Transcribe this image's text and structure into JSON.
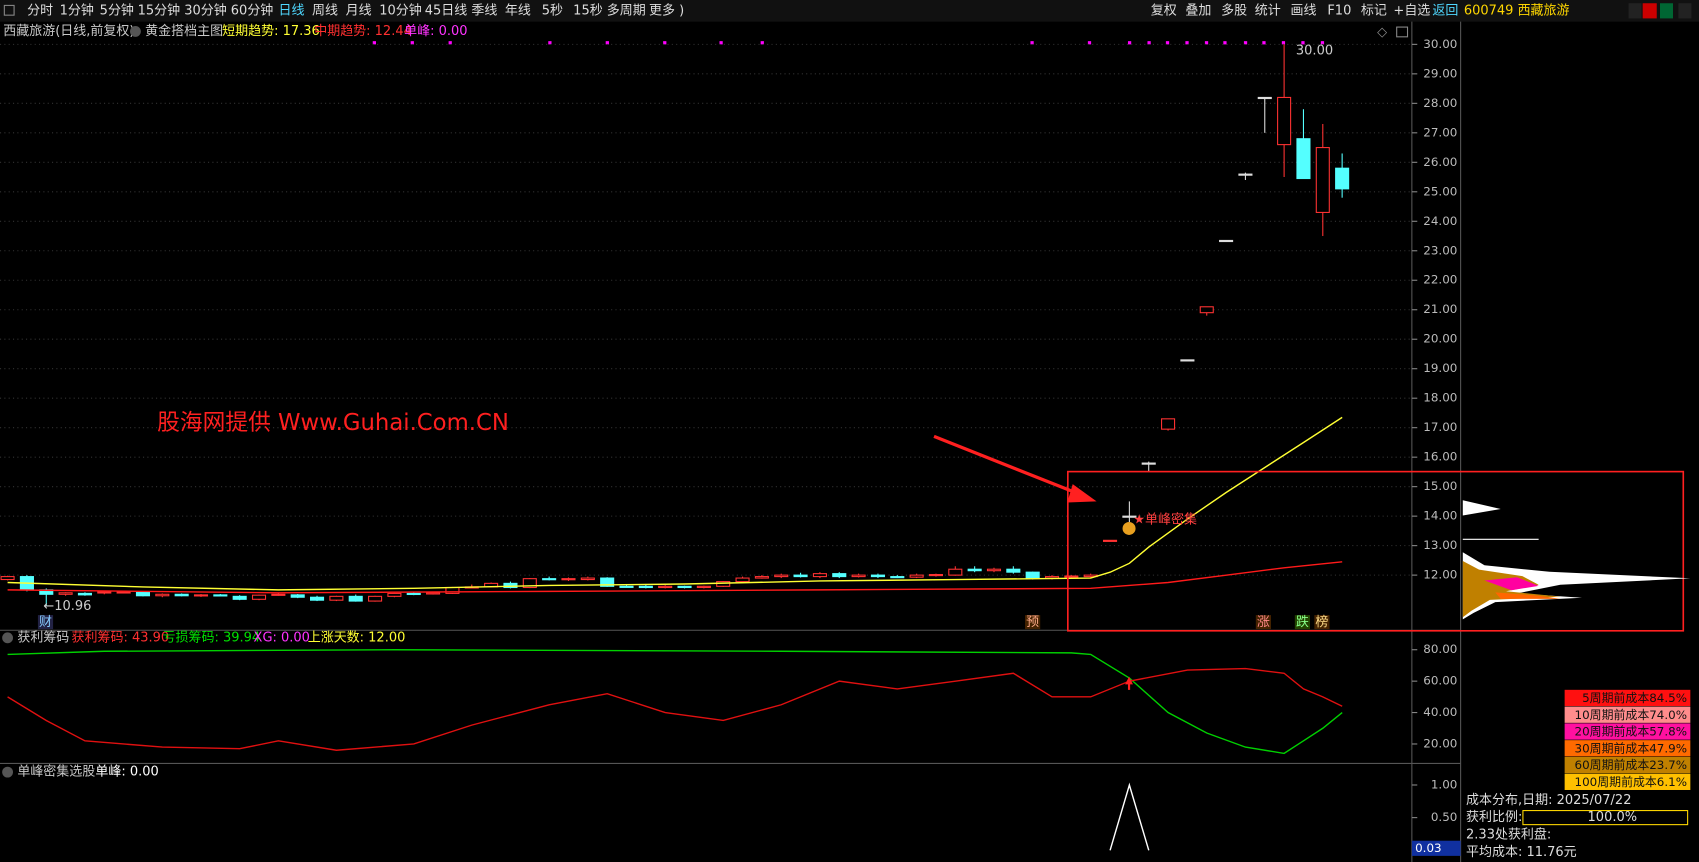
{
  "toolbar": {
    "left": [
      "分时",
      "1分钟",
      "5分钟",
      "15分钟",
      "30分钟",
      "60分钟",
      "日线",
      "周线",
      "月线",
      "10分钟",
      "45日线",
      "季线",
      "年线",
      "5秒",
      "15秒",
      "多周期",
      "更多 )"
    ],
    "right": [
      "复权",
      "叠加",
      "多股",
      "统计",
      "画线",
      "F10",
      "标记",
      "+自选",
      "返回"
    ],
    "stock": "600749 西藏旅游"
  },
  "main_header": {
    "name": "西藏旅游(日线,前复权)",
    "indicator": "黄金搭档主图",
    "short": "短期趋势: 17.36",
    "mid": "中期趋势: 12.44",
    "peak": "单峰: 0.00"
  },
  "pane2_header": {
    "name": "获利筹码",
    "profit": "获利筹码: 43.90",
    "loss": "亏损筹码: 39.94",
    "xg": "XG: 0.00",
    "days": "上涨天数: 12.00"
  },
  "pane3_header": {
    "name": "单峰密集选股",
    "peak": "单峰: 0.00"
  },
  "annotations": {
    "high": "30.00",
    "low": "←10.96",
    "cluster": "★单峰密集",
    "watermark": "股海网提供 Www.Guhai.Com.CN",
    "cai": "财",
    "yu": "预",
    "zhang": "涨",
    "die": "跌",
    "bang": "榜"
  },
  "cost_legend": [
    "5周期前成本84.5%",
    "10周期前成本74.0%",
    "20周期前成本57.8%",
    "30周期前成本47.9%",
    "60周期前成本23.7%",
    "100周期前成本6.1%"
  ],
  "cost_info": {
    "date": "成本分布,日期:  2025/07/22",
    "ratio_label": "获利比例:",
    "ratio": "100.0%",
    "profit_at": "2.33处获利盘:",
    "avg": "平均成本:  11.76元"
  },
  "chart_data": [
    {
      "type": "candlestick",
      "ylim": [
        10.13,
        30.77
      ],
      "grid": true,
      "yticks": [
        {
          "value": 12,
          "label": "12.00"
        },
        {
          "value": 13,
          "label": "13.00"
        },
        {
          "value": 14,
          "label": "14.00"
        },
        {
          "value": 15,
          "label": "15.00"
        },
        {
          "value": 16,
          "label": "16.00"
        },
        {
          "value": 17,
          "label": "17.00"
        },
        {
          "value": 18,
          "label": "18.00"
        },
        {
          "value": 19,
          "label": "19.00"
        },
        {
          "value": 20,
          "label": "20.00"
        },
        {
          "value": 21,
          "label": "21.00"
        },
        {
          "value": 22,
          "label": "22.00"
        },
        {
          "value": 23,
          "label": "23.00"
        },
        {
          "value": 24,
          "label": "24.00"
        },
        {
          "value": 25,
          "label": "25.00"
        },
        {
          "value": 26,
          "label": "26.00"
        },
        {
          "value": 27,
          "label": "27.00"
        },
        {
          "value": 28,
          "label": "28.00"
        },
        {
          "value": 29,
          "label": "29.00"
        },
        {
          "value": 30,
          "label": "30.00"
        }
      ],
      "up_color": "#ff3232",
      "down_color": "#54ffff",
      "candles": [
        [
          11.85,
          11.98,
          11.82,
          11.95
        ],
        [
          11.95,
          12.0,
          11.45,
          11.5
        ],
        [
          11.5,
          11.55,
          10.96,
          11.35
        ],
        [
          11.35,
          11.42,
          11.3,
          11.4
        ],
        [
          11.38,
          11.42,
          11.3,
          11.33
        ],
        [
          11.4,
          11.45,
          11.35,
          11.43
        ],
        [
          11.4,
          11.45,
          11.38,
          11.43
        ],
        [
          11.42,
          11.45,
          11.28,
          11.3
        ],
        [
          11.3,
          11.38,
          11.25,
          11.35
        ],
        [
          11.35,
          11.38,
          11.28,
          11.3
        ],
        [
          11.3,
          11.36,
          11.26,
          11.33
        ],
        [
          11.33,
          11.36,
          11.28,
          11.3
        ],
        [
          11.28,
          11.32,
          11.15,
          11.18
        ],
        [
          11.18,
          11.34,
          11.15,
          11.32
        ],
        [
          11.33,
          11.38,
          11.3,
          11.35
        ],
        [
          11.33,
          11.36,
          11.22,
          11.25
        ],
        [
          11.25,
          11.3,
          11.12,
          11.15
        ],
        [
          11.15,
          11.3,
          11.12,
          11.28
        ],
        [
          11.28,
          11.34,
          11.1,
          11.12
        ],
        [
          11.12,
          11.3,
          11.1,
          11.28
        ],
        [
          11.28,
          11.4,
          11.25,
          11.38
        ],
        [
          11.38,
          11.42,
          11.32,
          11.36
        ],
        [
          11.36,
          11.42,
          11.34,
          11.4
        ],
        [
          11.38,
          11.6,
          11.36,
          11.58
        ],
        [
          11.58,
          11.68,
          11.55,
          11.6
        ],
        [
          11.6,
          11.75,
          11.58,
          11.72
        ],
        [
          11.72,
          11.78,
          11.55,
          11.58
        ],
        [
          11.58,
          11.9,
          11.56,
          11.88
        ],
        [
          11.88,
          11.95,
          11.82,
          11.85
        ],
        [
          11.85,
          11.92,
          11.8,
          11.88
        ],
        [
          11.85,
          11.95,
          11.82,
          11.9
        ],
        [
          11.9,
          11.93,
          11.6,
          11.62
        ],
        [
          11.62,
          11.66,
          11.58,
          11.6
        ],
        [
          11.62,
          11.7,
          11.55,
          11.58
        ],
        [
          11.58,
          11.66,
          11.55,
          11.62
        ],
        [
          11.62,
          11.64,
          11.55,
          11.58
        ],
        [
          11.58,
          11.64,
          11.55,
          11.62
        ],
        [
          11.62,
          11.8,
          11.6,
          11.78
        ],
        [
          11.78,
          11.95,
          11.76,
          11.9
        ],
        [
          11.9,
          12.0,
          11.88,
          11.95
        ],
        [
          11.95,
          12.05,
          11.9,
          12.0
        ],
        [
          12.0,
          12.08,
          11.92,
          11.95
        ],
        [
          11.95,
          12.1,
          11.9,
          12.05
        ],
        [
          12.05,
          12.1,
          11.9,
          11.95
        ],
        [
          11.95,
          12.05,
          11.92,
          12.0
        ],
        [
          12.0,
          12.05,
          11.9,
          11.95
        ],
        [
          11.95,
          12.0,
          11.9,
          11.93
        ],
        [
          11.93,
          12.05,
          11.9,
          12.0
        ],
        [
          12.0,
          12.05,
          11.95,
          12.02
        ],
        [
          12.0,
          12.3,
          11.98,
          12.2
        ],
        [
          12.2,
          12.3,
          12.1,
          12.15
        ],
        [
          12.15,
          12.25,
          12.1,
          12.2
        ],
        [
          12.2,
          12.3,
          12.05,
          12.1
        ],
        [
          12.1,
          12.12,
          11.85,
          11.9
        ],
        [
          11.9,
          12.0,
          11.85,
          11.95
        ],
        [
          11.95,
          12.0,
          11.9,
          11.97
        ],
        [
          11.95,
          12.05,
          11.92,
          12.0
        ],
        [
          13.15,
          13.18,
          13.15,
          13.18
        ],
        [
          14.0,
          14.5,
          13.8,
          14.0
        ],
        [
          15.8,
          15.85,
          15.5,
          15.8
        ],
        [
          16.95,
          17.3,
          16.9,
          17.3
        ],
        [
          19.3,
          19.3,
          19.3,
          19.3
        ],
        [
          20.9,
          21.1,
          20.8,
          21.1
        ],
        [
          23.35,
          23.35,
          23.35,
          23.35
        ],
        [
          25.6,
          25.65,
          25.4,
          25.6
        ],
        [
          28.2,
          28.2,
          27.0,
          28.2
        ],
        [
          26.6,
          30.0,
          25.5,
          28.2
        ],
        [
          26.8,
          27.8,
          25.5,
          25.45
        ],
        [
          24.3,
          27.3,
          23.5,
          26.5
        ],
        [
          25.8,
          26.3,
          24.8,
          25.1
        ]
      ],
      "lines": [
        {
          "color": "#ffff33",
          "x": [
            0,
            7,
            14,
            21,
            28,
            35,
            42,
            49,
            56,
            57,
            58,
            59,
            61,
            63,
            65,
            67,
            69
          ],
          "values": [
            11.75,
            11.6,
            11.5,
            11.55,
            11.65,
            11.7,
            11.8,
            11.85,
            11.9,
            12.1,
            12.4,
            12.95,
            13.9,
            14.8,
            15.65,
            16.5,
            17.35
          ]
        },
        {
          "color": "#ff1a1a",
          "x": [
            0,
            14,
            28,
            42,
            56,
            60,
            63,
            66,
            69
          ],
          "values": [
            11.5,
            11.4,
            11.45,
            11.5,
            11.55,
            11.75,
            12.0,
            12.25,
            12.45
          ]
        }
      ]
    },
    {
      "type": "line",
      "ylim": [
        7.6,
        92.4
      ],
      "yticks": [
        {
          "value": 20,
          "label": "20.00"
        },
        {
          "value": 40,
          "label": "40.00"
        },
        {
          "value": 60,
          "label": "60.00"
        },
        {
          "value": 80,
          "label": "80.00"
        }
      ],
      "series": [
        {
          "color": "#00d000",
          "x": [
            0,
            5,
            20,
            40,
            55,
            56,
            58,
            60,
            62,
            64,
            66,
            67,
            68,
            69
          ],
          "values": [
            77,
            79,
            80,
            79,
            78,
            77,
            62,
            40,
            27,
            18,
            14,
            22,
            30,
            40
          ]
        },
        {
          "color": "#e01010",
          "x": [
            0,
            2,
            4,
            8,
            12,
            14,
            17,
            21,
            24,
            28,
            31,
            34,
            37,
            40,
            43,
            46,
            49,
            52,
            54,
            56,
            58,
            61,
            64,
            66,
            67,
            68,
            69
          ],
          "values": [
            50,
            35,
            22,
            18,
            17,
            22,
            16,
            20,
            32,
            45,
            52,
            40,
            35,
            45,
            60,
            55,
            60,
            65,
            50,
            50,
            60,
            67,
            68,
            65,
            55,
            50,
            44
          ]
        }
      ]
    },
    {
      "type": "line",
      "ylim": [
        -0.18,
        1.33
      ],
      "yticks": [
        {
          "value": 0.5,
          "label": "0.50"
        },
        {
          "value": 1,
          "label": "1.00"
        }
      ],
      "current": {
        "value": 0.03,
        "label": "0.03"
      },
      "series": [
        {
          "color": "#ffffff",
          "x": [
            57,
            58,
            59
          ],
          "values": [
            0,
            1,
            0
          ]
        }
      ]
    }
  ]
}
